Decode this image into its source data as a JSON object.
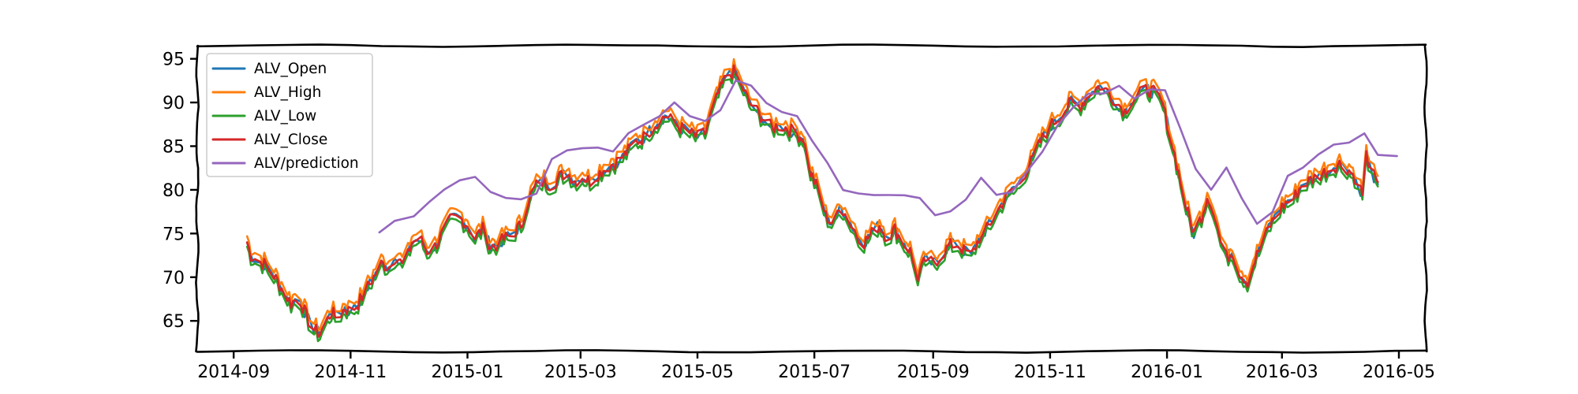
{
  "chart_data": {
    "type": "line",
    "title": "",
    "xlabel": "",
    "ylabel": "",
    "style": "xkcd-sketch",
    "grid": false,
    "legend_position": "top-left",
    "x_type": "date",
    "xlim": [
      "2014-08-13",
      "2016-05-15"
    ],
    "ylim": [
      61.5,
      96.5
    ],
    "x_ticks": [
      "2014-09",
      "2014-11",
      "2015-01",
      "2015-03",
      "2015-05",
      "2015-07",
      "2015-09",
      "2015-11",
      "2016-01",
      "2016-03",
      "2016-05"
    ],
    "y_ticks": [
      65,
      70,
      75,
      80,
      85,
      90,
      95
    ],
    "close_points": [
      [
        "2014-09-08",
        74.0
      ],
      [
        "2014-09-10",
        72.5
      ],
      [
        "2014-09-13",
        72.0
      ],
      [
        "2014-09-17",
        71.5
      ],
      [
        "2014-09-20",
        70.8
      ],
      [
        "2014-09-24",
        69.5
      ],
      [
        "2014-09-28",
        68.0
      ],
      [
        "2014-10-01",
        67.0
      ],
      [
        "2014-10-05",
        67.8
      ],
      [
        "2014-10-09",
        65.5
      ],
      [
        "2014-10-12",
        64.2
      ],
      [
        "2014-10-16",
        63.5
      ],
      [
        "2014-10-19",
        64.8
      ],
      [
        "2014-10-22",
        66.0
      ],
      [
        "2014-10-25",
        65.2
      ],
      [
        "2014-10-29",
        66.5
      ],
      [
        "2014-11-01",
        66.0
      ],
      [
        "2014-11-05",
        67.0
      ],
      [
        "2014-11-09",
        68.5
      ],
      [
        "2014-11-13",
        70.0
      ],
      [
        "2014-11-17",
        71.5
      ],
      [
        "2014-11-21",
        71.2
      ],
      [
        "2014-11-25",
        72.5
      ],
      [
        "2014-11-29",
        71.0
      ],
      [
        "2014-12-03",
        74.0
      ],
      [
        "2014-12-07",
        74.5
      ],
      [
        "2014-12-11",
        73.0
      ],
      [
        "2014-12-15",
        73.5
      ],
      [
        "2014-12-19",
        75.0
      ],
      [
        "2014-12-23",
        76.5
      ],
      [
        "2014-12-27",
        77.0
      ],
      [
        "2015-01-01",
        76.0
      ],
      [
        "2015-01-05",
        74.5
      ],
      [
        "2015-01-09",
        75.5
      ],
      [
        "2015-01-13",
        73.5
      ],
      [
        "2015-01-17",
        73.8
      ],
      [
        "2015-01-21",
        74.5
      ],
      [
        "2015-01-25",
        75.0
      ],
      [
        "2015-01-29",
        76.0
      ],
      [
        "2015-02-02",
        79.0
      ],
      [
        "2015-02-06",
        80.5
      ],
      [
        "2015-02-10",
        81.0
      ],
      [
        "2015-02-14",
        80.5
      ],
      [
        "2015-02-18",
        81.5
      ],
      [
        "2015-02-22",
        82.0
      ],
      [
        "2015-02-26",
        81.0
      ],
      [
        "2015-03-02",
        81.5
      ],
      [
        "2015-03-06",
        81.0
      ],
      [
        "2015-03-10",
        81.8
      ],
      [
        "2015-03-14",
        82.5
      ],
      [
        "2015-03-18",
        83.0
      ],
      [
        "2015-03-22",
        83.5
      ],
      [
        "2015-03-26",
        84.5
      ],
      [
        "2015-03-30",
        85.5
      ],
      [
        "2015-04-03",
        86.0
      ],
      [
        "2015-04-07",
        87.0
      ],
      [
        "2015-04-11",
        88.0
      ],
      [
        "2015-04-15",
        88.5
      ],
      [
        "2015-04-19",
        87.5
      ],
      [
        "2015-04-23",
        87.0
      ],
      [
        "2015-04-27",
        86.5
      ],
      [
        "2015-05-01",
        86.0
      ],
      [
        "2015-05-05",
        86.5
      ],
      [
        "2015-05-08",
        88.5
      ],
      [
        "2015-05-12",
        91.0
      ],
      [
        "2015-05-16",
        93.0
      ],
      [
        "2015-05-20",
        93.5
      ],
      [
        "2015-05-24",
        92.0
      ],
      [
        "2015-05-28",
        90.0
      ],
      [
        "2015-06-01",
        89.0
      ],
      [
        "2015-06-05",
        88.0
      ],
      [
        "2015-06-09",
        87.0
      ],
      [
        "2015-06-13",
        87.5
      ],
      [
        "2015-06-17",
        87.0
      ],
      [
        "2015-06-21",
        86.5
      ],
      [
        "2015-06-25",
        86.0
      ],
      [
        "2015-06-29",
        82.0
      ],
      [
        "2015-07-03",
        80.0
      ],
      [
        "2015-07-07",
        77.0
      ],
      [
        "2015-07-11",
        76.0
      ],
      [
        "2015-07-15",
        78.0
      ],
      [
        "2015-07-19",
        76.5
      ],
      [
        "2015-07-23",
        75.0
      ],
      [
        "2015-07-27",
        74.0
      ],
      [
        "2015-07-31",
        75.0
      ],
      [
        "2015-08-04",
        76.0
      ],
      [
        "2015-08-08",
        74.5
      ],
      [
        "2015-08-12",
        75.5
      ],
      [
        "2015-08-16",
        74.0
      ],
      [
        "2015-08-20",
        73.0
      ],
      [
        "2015-08-24",
        70.0
      ],
      [
        "2015-08-28",
        72.0
      ],
      [
        "2015-09-01",
        71.5
      ],
      [
        "2015-09-05",
        72.5
      ],
      [
        "2015-09-09",
        73.5
      ],
      [
        "2015-09-13",
        74.0
      ],
      [
        "2015-09-17",
        73.0
      ],
      [
        "2015-09-21",
        72.5
      ],
      [
        "2015-09-25",
        74.5
      ],
      [
        "2015-09-29",
        75.5
      ],
      [
        "2015-10-03",
        77.0
      ],
      [
        "2015-10-07",
        78.5
      ],
      [
        "2015-10-11",
        79.5
      ],
      [
        "2015-10-15",
        80.5
      ],
      [
        "2015-10-19",
        82.0
      ],
      [
        "2015-10-23",
        83.5
      ],
      [
        "2015-10-27",
        85.5
      ],
      [
        "2015-10-31",
        87.0
      ],
      [
        "2015-11-04",
        88.0
      ],
      [
        "2015-11-08",
        89.0
      ],
      [
        "2015-11-12",
        90.0
      ],
      [
        "2015-11-16",
        89.5
      ],
      [
        "2015-11-20",
        90.5
      ],
      [
        "2015-11-24",
        91.5
      ],
      [
        "2015-11-28",
        92.0
      ],
      [
        "2015-12-02",
        91.0
      ],
      [
        "2015-12-06",
        90.0
      ],
      [
        "2015-12-10",
        89.0
      ],
      [
        "2015-12-14",
        90.5
      ],
      [
        "2015-12-18",
        91.0
      ],
      [
        "2015-12-22",
        91.5
      ],
      [
        "2015-12-26",
        91.0
      ],
      [
        "2015-12-30",
        89.5
      ],
      [
        "2016-01-03",
        86.0
      ],
      [
        "2016-01-07",
        82.0
      ],
      [
        "2016-01-11",
        78.0
      ],
      [
        "2016-01-15",
        75.0
      ],
      [
        "2016-01-19",
        77.0
      ],
      [
        "2016-01-23",
        80.0
      ],
      [
        "2016-01-27",
        76.0
      ],
      [
        "2016-01-31",
        72.0
      ],
      [
        "2016-02-04",
        73.0
      ],
      [
        "2016-02-08",
        70.5
      ],
      [
        "2016-02-12",
        69.5
      ],
      [
        "2016-02-16",
        72.0
      ],
      [
        "2016-02-20",
        74.0
      ],
      [
        "2016-02-24",
        76.0
      ],
      [
        "2016-02-28",
        77.5
      ],
      [
        "2016-03-03",
        78.5
      ],
      [
        "2016-03-07",
        79.0
      ],
      [
        "2016-03-11",
        80.5
      ],
      [
        "2016-03-15",
        81.0
      ],
      [
        "2016-03-19",
        81.5
      ],
      [
        "2016-03-23",
        82.0
      ],
      [
        "2016-03-27",
        82.5
      ],
      [
        "2016-03-31",
        83.0
      ],
      [
        "2016-04-04",
        82.5
      ],
      [
        "2016-04-08",
        81.5
      ],
      [
        "2016-04-12",
        79.5
      ],
      [
        "2016-04-14",
        84.0
      ],
      [
        "2016-04-20",
        80.2
      ]
    ],
    "series": [
      {
        "name": "ALV_Open",
        "color": "#1f77b4",
        "offset_from_close": 0.0
      },
      {
        "name": "ALV_High",
        "color": "#ff7f0e",
        "offset_from_close": 0.7
      },
      {
        "name": "ALV_Low",
        "color": "#2ca02c",
        "offset_from_close": -0.5
      },
      {
        "name": "ALV_Close",
        "color": "#d62728",
        "offset_from_close": 0.0
      },
      {
        "name": "ALV/prediction",
        "color": "#9467bd",
        "points": [
          [
            "2014-11-16",
            75.2
          ],
          [
            "2014-11-24",
            76.5
          ],
          [
            "2014-12-04",
            77.0
          ],
          [
            "2014-12-12",
            78.5
          ],
          [
            "2014-12-20",
            80.0
          ],
          [
            "2014-12-28",
            81.0
          ],
          [
            "2015-01-05",
            81.5
          ],
          [
            "2015-01-13",
            79.8
          ],
          [
            "2015-01-21",
            79.0
          ],
          [
            "2015-01-29",
            79.0
          ],
          [
            "2015-02-06",
            79.5
          ],
          [
            "2015-02-14",
            83.5
          ],
          [
            "2015-02-22",
            84.5
          ],
          [
            "2015-03-02",
            84.8
          ],
          [
            "2015-03-10",
            84.8
          ],
          [
            "2015-03-18",
            84.5
          ],
          [
            "2015-03-26",
            86.5
          ],
          [
            "2015-04-03",
            87.5
          ],
          [
            "2015-04-11",
            88.5
          ],
          [
            "2015-04-19",
            90.0
          ],
          [
            "2015-04-27",
            88.5
          ],
          [
            "2015-05-05",
            88.0
          ],
          [
            "2015-05-13",
            89.0
          ],
          [
            "2015-05-21",
            92.5
          ],
          [
            "2015-05-29",
            92.0
          ],
          [
            "2015-06-06",
            90.0
          ],
          [
            "2015-06-14",
            88.8
          ],
          [
            "2015-06-22",
            88.5
          ],
          [
            "2015-06-30",
            85.5
          ],
          [
            "2015-07-08",
            83.0
          ],
          [
            "2015-07-16",
            80.0
          ],
          [
            "2015-07-24",
            79.5
          ],
          [
            "2015-08-01",
            79.5
          ],
          [
            "2015-08-09",
            79.5
          ],
          [
            "2015-08-17",
            79.5
          ],
          [
            "2015-08-25",
            79.0
          ],
          [
            "2015-09-02",
            77.0
          ],
          [
            "2015-09-10",
            77.5
          ],
          [
            "2015-09-18",
            79.0
          ],
          [
            "2015-09-26",
            81.5
          ],
          [
            "2015-10-04",
            79.5
          ],
          [
            "2015-10-12",
            79.8
          ],
          [
            "2015-10-20",
            82.0
          ],
          [
            "2015-10-28",
            84.5
          ],
          [
            "2015-11-05",
            87.5
          ],
          [
            "2015-11-13",
            89.5
          ],
          [
            "2015-11-21",
            91.0
          ],
          [
            "2015-11-29",
            91.0
          ],
          [
            "2015-12-07",
            92.0
          ],
          [
            "2015-12-15",
            90.5
          ],
          [
            "2015-12-23",
            91.5
          ],
          [
            "2015-12-31",
            91.5
          ],
          [
            "2016-01-08",
            87.0
          ],
          [
            "2016-01-16",
            82.5
          ],
          [
            "2016-01-24",
            80.0
          ],
          [
            "2016-02-01",
            82.5
          ],
          [
            "2016-02-09",
            79.0
          ],
          [
            "2016-02-17",
            76.0
          ],
          [
            "2016-02-25",
            77.5
          ],
          [
            "2016-03-04",
            81.5
          ],
          [
            "2016-03-12",
            82.5
          ],
          [
            "2016-03-20",
            84.0
          ],
          [
            "2016-03-28",
            85.3
          ],
          [
            "2016-04-05",
            85.5
          ],
          [
            "2016-04-13",
            86.5
          ],
          [
            "2016-04-20",
            84.0
          ],
          [
            "2016-04-30",
            83.8
          ]
        ]
      }
    ]
  }
}
